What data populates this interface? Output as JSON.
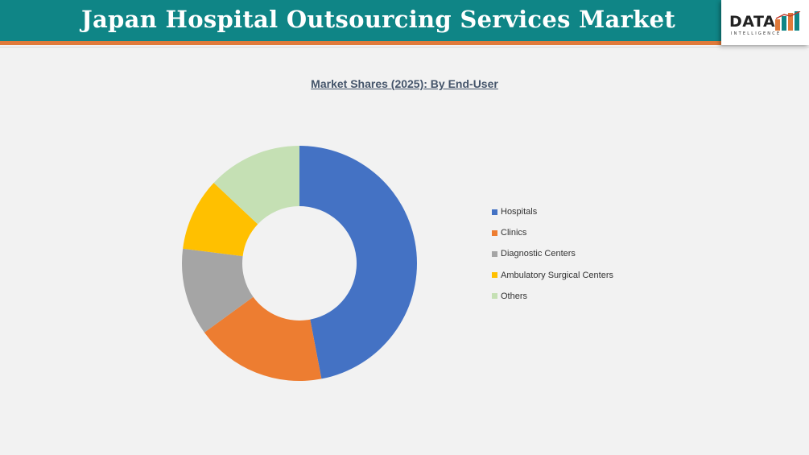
{
  "header": {
    "title": "Japan Hospital Outsourcing Services Market"
  },
  "logo": {
    "word": "DATA",
    "subtext": "INTELLIGENCE"
  },
  "colors": {
    "header_bg": "#0f8586",
    "header_accent": "#e07a3a"
  },
  "chart_data": {
    "type": "pie",
    "donut": true,
    "title": "Market Shares (2025): By End-User",
    "categories": [
      "Hospitals",
      "Clinics",
      "Diagnostic Centers",
      "Ambulatory Surgical Centers",
      "Others"
    ],
    "values": [
      47,
      18,
      12,
      10,
      13
    ],
    "colors": [
      "#4472c4",
      "#ed7d31",
      "#a5a5a5",
      "#ffc000",
      "#c5e0b4"
    ],
    "legend_position": "right"
  }
}
